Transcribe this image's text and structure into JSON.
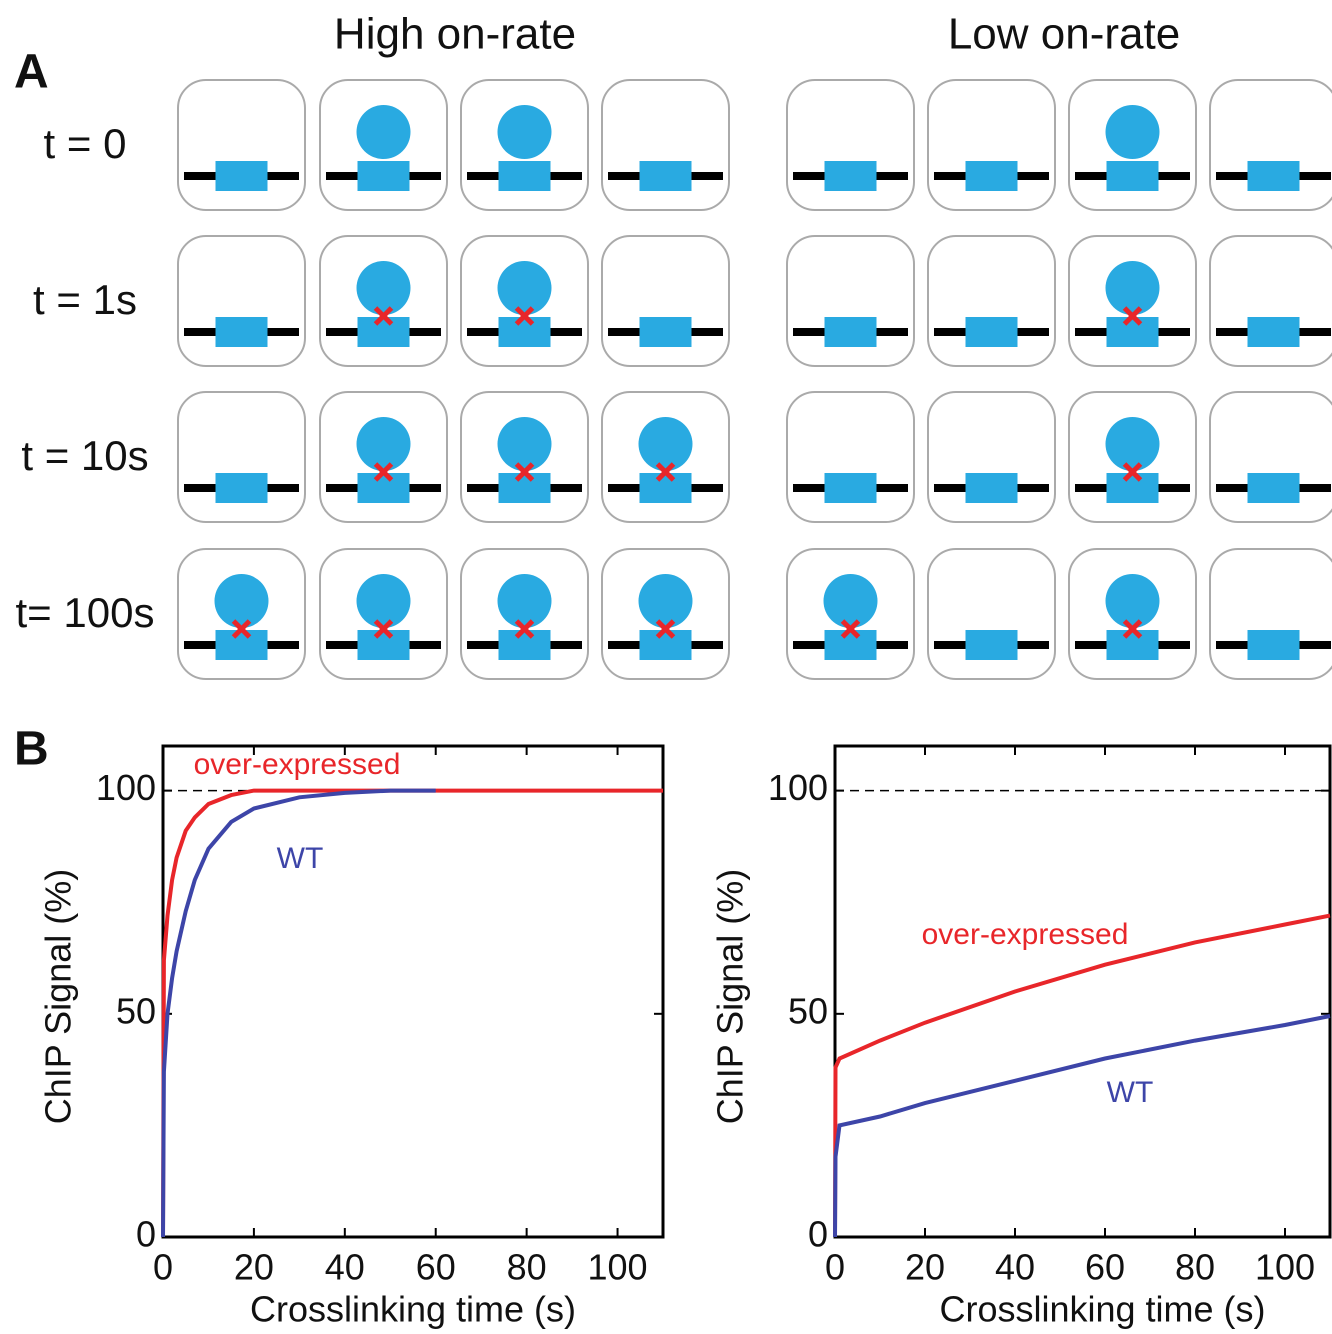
{
  "panel_a": {
    "label": "A",
    "columns": [
      "High on-rate",
      "Low on-rate"
    ],
    "rows": [
      "t = 0",
      "t = 1s",
      "t = 10s",
      "t= 100s"
    ]
  },
  "panel_b_label": "B",
  "chart_data": [
    {
      "type": "line",
      "xlabel": "Crosslinking time (s)",
      "ylabel": "ChIP Signal (%)",
      "x": [
        0,
        0.2,
        1,
        2,
        3,
        5,
        7,
        10,
        15,
        20,
        30,
        40,
        50,
        60,
        80,
        110
      ],
      "series": [
        {
          "name": "over-expressed",
          "color": "#e8262a",
          "values": [
            0,
            62,
            72,
            80,
            85,
            91,
            94,
            97,
            99,
            100,
            100,
            100,
            100,
            100,
            100,
            100
          ]
        },
        {
          "name": "WT",
          "color": "#3d45a8",
          "values": [
            0,
            37,
            50,
            58,
            64,
            73,
            80,
            87,
            93,
            96,
            98.5,
            99.5,
            100,
            100,
            null,
            null
          ]
        }
      ],
      "xlim": [
        0,
        110
      ],
      "ylim": [
        0,
        110
      ],
      "xticks": [
        0,
        20,
        40,
        60,
        80,
        100
      ],
      "yticks": [
        0,
        50,
        100
      ],
      "hline": 100
    },
    {
      "type": "line",
      "xlabel": "Crosslinking time (s)",
      "ylabel": "ChIP Signal (%)",
      "x": [
        0,
        0.1,
        1,
        10,
        20,
        40,
        60,
        80,
        100,
        110
      ],
      "series": [
        {
          "name": "over-expressed",
          "color": "#e8262a",
          "values": [
            0,
            38,
            40,
            44,
            48,
            55,
            61,
            66,
            70,
            72
          ]
        },
        {
          "name": "WT",
          "color": "#3d45a8",
          "values": [
            0,
            18,
            25,
            27,
            30,
            35,
            40,
            44,
            47.5,
            49.5
          ]
        }
      ],
      "xlim": [
        0,
        110
      ],
      "ylim": [
        0,
        110
      ],
      "xticks": [
        0,
        20,
        40,
        60,
        80,
        100
      ],
      "yticks": [
        0,
        50,
        100
      ],
      "hline": 100
    }
  ]
}
